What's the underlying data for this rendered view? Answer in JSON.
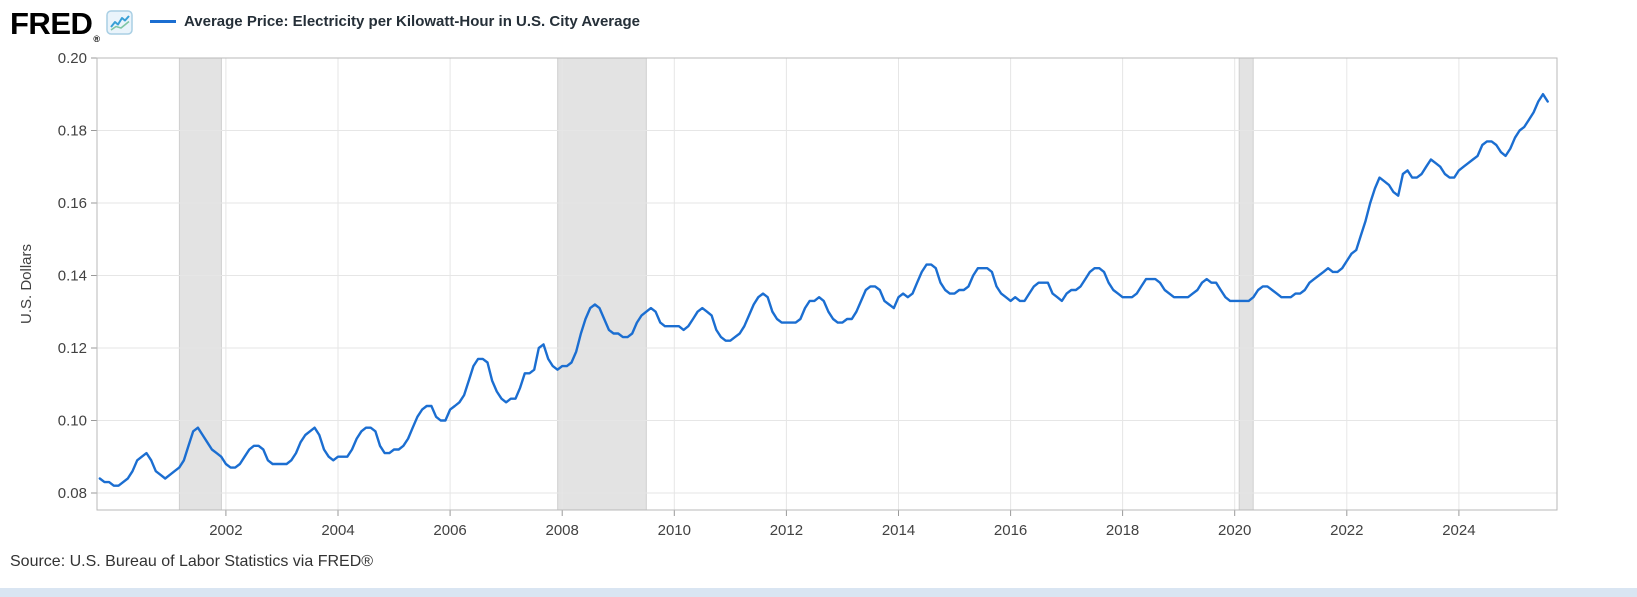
{
  "header": {
    "logo_text": "FRED",
    "logo_registered": "®",
    "legend": {
      "label": "Average Price: Electricity per Kilowatt-Hour in U.S. City Average"
    }
  },
  "footer": {
    "source_text": "Source: U.S. Bureau of Labor Statistics via FRED®"
  },
  "chart_data": {
    "type": "line",
    "title": "Average Price: Electricity per Kilowatt-Hour in U.S. City Average",
    "xlabel": "",
    "ylabel": "U.S. Dollars",
    "ylim": [
      0.0753,
      0.2
    ],
    "xlim": [
      1999.7,
      2025.75
    ],
    "yticks": [
      "0.08",
      "0.10",
      "0.12",
      "0.14",
      "0.16",
      "0.18",
      "0.20"
    ],
    "xticks": [
      2002,
      2004,
      2006,
      2008,
      2010,
      2012,
      2014,
      2016,
      2018,
      2020,
      2022,
      2024
    ],
    "grid": true,
    "legend_position": "top",
    "line_color": "#1b6ed1",
    "recession_band_color": "#e3e3e3",
    "recession_band_edge_color": "#cfcfcf",
    "recession_bands": [
      [
        2001.17,
        2001.92
      ],
      [
        2007.92,
        2009.5
      ],
      [
        2020.08,
        2020.33
      ]
    ],
    "series": [
      {
        "name": "Average Price: Electricity per Kilowatt-Hour in U.S. City Average",
        "frequency": "monthly",
        "start_year": 1999,
        "start_month": 10,
        "values": [
          0.084,
          0.083,
          0.083,
          0.082,
          0.082,
          0.083,
          0.084,
          0.086,
          0.089,
          0.09,
          0.091,
          0.089,
          0.086,
          0.085,
          0.084,
          0.085,
          0.086,
          0.087,
          0.089,
          0.093,
          0.097,
          0.098,
          0.096,
          0.094,
          0.092,
          0.091,
          0.09,
          0.088,
          0.087,
          0.087,
          0.088,
          0.09,
          0.092,
          0.093,
          0.093,
          0.092,
          0.089,
          0.088,
          0.088,
          0.088,
          0.088,
          0.089,
          0.091,
          0.094,
          0.096,
          0.097,
          0.098,
          0.096,
          0.092,
          0.09,
          0.089,
          0.09,
          0.09,
          0.09,
          0.092,
          0.095,
          0.097,
          0.098,
          0.098,
          0.097,
          0.093,
          0.091,
          0.091,
          0.092,
          0.092,
          0.093,
          0.095,
          0.098,
          0.101,
          0.103,
          0.104,
          0.104,
          0.101,
          0.1,
          0.1,
          0.103,
          0.104,
          0.105,
          0.107,
          0.111,
          0.115,
          0.117,
          0.117,
          0.116,
          0.111,
          0.108,
          0.106,
          0.105,
          0.106,
          0.106,
          0.109,
          0.113,
          0.113,
          0.114,
          0.12,
          0.121,
          0.117,
          0.115,
          0.114,
          0.115,
          0.115,
          0.116,
          0.119,
          0.124,
          0.128,
          0.131,
          0.132,
          0.131,
          0.128,
          0.125,
          0.124,
          0.124,
          0.123,
          0.123,
          0.124,
          0.127,
          0.129,
          0.13,
          0.131,
          0.13,
          0.127,
          0.126,
          0.126,
          0.126,
          0.126,
          0.125,
          0.126,
          0.128,
          0.13,
          0.131,
          0.13,
          0.129,
          0.125,
          0.123,
          0.122,
          0.122,
          0.123,
          0.124,
          0.126,
          0.129,
          0.132,
          0.134,
          0.135,
          0.134,
          0.13,
          0.128,
          0.127,
          0.127,
          0.127,
          0.127,
          0.128,
          0.131,
          0.133,
          0.133,
          0.134,
          0.133,
          0.13,
          0.128,
          0.127,
          0.127,
          0.128,
          0.128,
          0.13,
          0.133,
          0.136,
          0.137,
          0.137,
          0.136,
          0.133,
          0.132,
          0.131,
          0.134,
          0.135,
          0.134,
          0.135,
          0.138,
          0.141,
          0.143,
          0.143,
          0.142,
          0.138,
          0.136,
          0.135,
          0.135,
          0.136,
          0.136,
          0.137,
          0.14,
          0.142,
          0.142,
          0.142,
          0.141,
          0.137,
          0.135,
          0.134,
          0.133,
          0.134,
          0.133,
          0.133,
          0.135,
          0.137,
          0.138,
          0.138,
          0.138,
          0.135,
          0.134,
          0.133,
          0.135,
          0.136,
          0.136,
          0.137,
          0.139,
          0.141,
          0.142,
          0.142,
          0.141,
          0.138,
          0.136,
          0.135,
          0.134,
          0.134,
          0.134,
          0.135,
          0.137,
          0.139,
          0.139,
          0.139,
          0.138,
          0.136,
          0.135,
          0.134,
          0.134,
          0.134,
          0.134,
          0.135,
          0.136,
          0.138,
          0.139,
          0.138,
          0.138,
          0.136,
          0.134,
          0.133,
          0.133,
          0.133,
          0.133,
          0.133,
          0.134,
          0.136,
          0.137,
          0.137,
          0.136,
          0.135,
          0.134,
          0.134,
          0.134,
          0.135,
          0.135,
          0.136,
          0.138,
          0.139,
          0.14,
          0.141,
          0.142,
          0.141,
          0.141,
          0.142,
          0.144,
          0.146,
          0.147,
          0.151,
          0.155,
          0.16,
          0.164,
          0.167,
          0.166,
          0.165,
          0.163,
          0.162,
          0.168,
          0.169,
          0.167,
          0.167,
          0.168,
          0.17,
          0.172,
          0.171,
          0.17,
          0.168,
          0.167,
          0.167,
          0.169,
          0.17,
          0.171,
          0.172,
          0.173,
          0.176,
          0.177,
          0.177,
          0.176,
          0.174,
          0.173,
          0.175,
          0.178,
          0.18,
          0.181,
          0.183,
          0.185,
          0.188,
          0.19,
          0.188
        ]
      }
    ]
  }
}
